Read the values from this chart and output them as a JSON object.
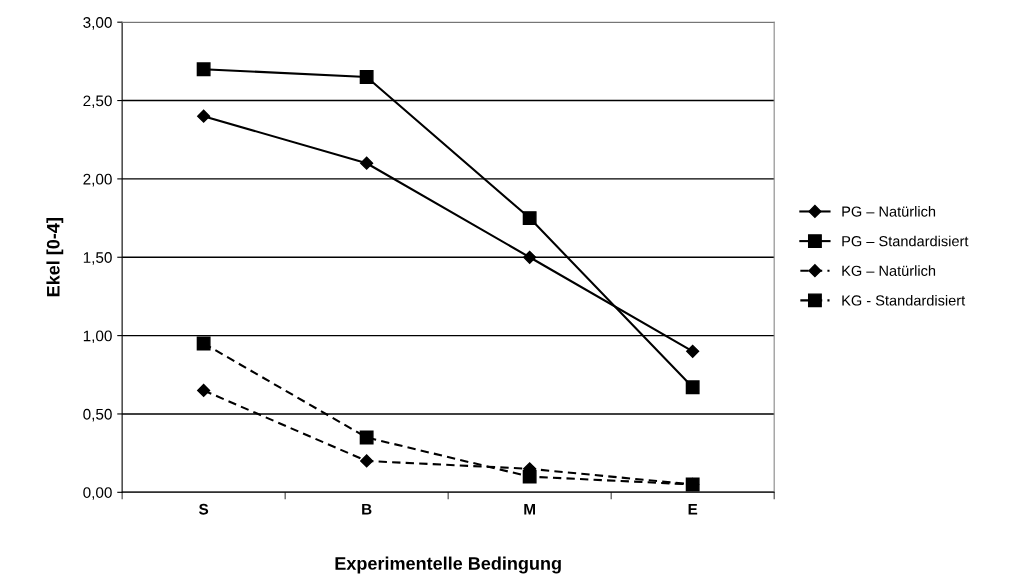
{
  "chart_data": {
    "type": "line",
    "xlabel": "Experimentelle Bedingung",
    "ylabel": "Ekel [0-4]",
    "categories": [
      "S",
      "B",
      "M",
      "E"
    ],
    "series": [
      {
        "name": "PG – Natürlich",
        "color": "#000000",
        "marker": "diamond",
        "line_style": "solid",
        "values": [
          2.4,
          2.1,
          1.5,
          0.9
        ]
      },
      {
        "name": "PG – Standardisiert",
        "color": "#000000",
        "marker": "square",
        "line_style": "solid",
        "values": [
          2.7,
          2.65,
          1.75,
          0.67
        ]
      },
      {
        "name": "KG – Natürlich",
        "color": "#000000",
        "marker": "diamond",
        "line_style": "dashed",
        "values": [
          0.65,
          0.2,
          0.15,
          0.05
        ]
      },
      {
        "name": "KG - Standardisiert",
        "color": "#000000",
        "marker": "square",
        "line_style": "dashed",
        "values": [
          0.95,
          0.35,
          0.1,
          0.05
        ]
      }
    ],
    "ylim": [
      0,
      3
    ],
    "yticks": [
      {
        "value": 0,
        "label": "0,00"
      },
      {
        "value": 0.5,
        "label": "0,50"
      },
      {
        "value": 1,
        "label": "1,00"
      },
      {
        "value": 1.5,
        "label": "1,50"
      },
      {
        "value": 2,
        "label": "2,00"
      },
      {
        "value": 2.5,
        "label": "2,50"
      },
      {
        "value": 3,
        "label": "3,00"
      }
    ],
    "grid": "y",
    "legend": "right"
  }
}
